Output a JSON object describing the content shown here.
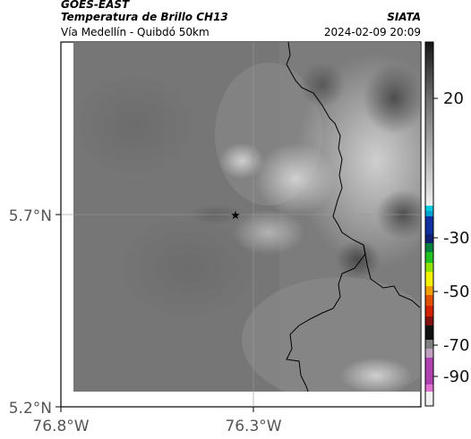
{
  "header": {
    "satellite": "GOES-EAST",
    "product": "Temperatura de Brillo CH13",
    "region": "Vía Medellín - Quibdó 50km",
    "org": "SIATA",
    "datetime": "2024-02-09 20:09"
  },
  "map": {
    "lat_labels": [
      "5.7°N",
      "5.2°N"
    ],
    "lon_labels": [
      "76.8°W",
      "76.3°W"
    ],
    "gridlines": true,
    "marker_icon": "star-icon"
  },
  "colorbar": {
    "ticks": [
      {
        "value": 20,
        "label": "20"
      },
      {
        "value": -30,
        "label": "-30"
      },
      {
        "value": -50,
        "label": "-50"
      },
      {
        "value": -70,
        "label": "-70"
      },
      {
        "value": -90,
        "label": "-90"
      }
    ],
    "colors": {
      "grey_top": "#1a1a1a",
      "grey_mid": "#9a9a9a",
      "cold_cyan": "#00ccdd",
      "cold_blue": "#102070",
      "cold_green": "#20c020",
      "cold_yellow": "#f0f000",
      "cold_red": "#d02000",
      "cold_black": "#101010",
      "cold_magenta": "#b040b0"
    }
  }
}
